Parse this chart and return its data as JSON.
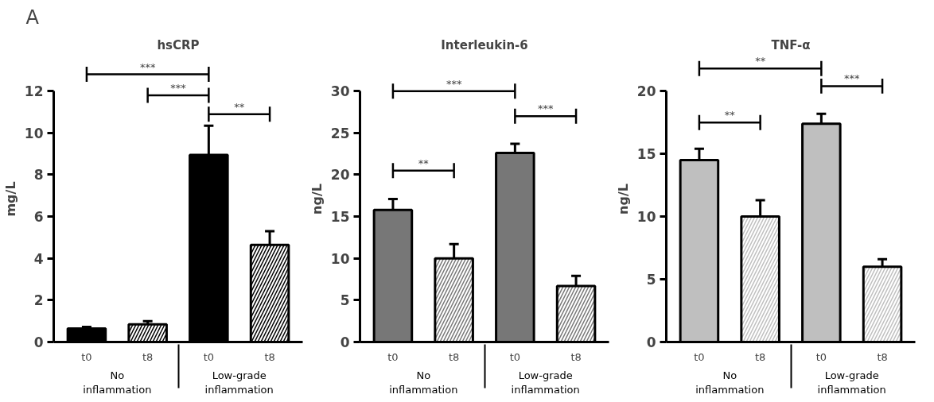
{
  "chart_data": [
    {
      "type": "bar",
      "title": "hsCRP",
      "ylabel": "mg/L",
      "categories": [
        "t0",
        "t8",
        "t0",
        "t8"
      ],
      "ylim": [
        0,
        12
      ],
      "yticks": [
        0,
        2,
        4,
        6,
        8,
        10,
        12
      ],
      "series": [
        {
          "color": "#000000",
          "values": [
            0.65,
            null,
            8.95,
            null
          ],
          "errors": [
            0.07,
            null,
            1.4,
            null
          ]
        },
        {
          "color": "#ffffff",
          "values": [
            null,
            0.85,
            null,
            4.65
          ],
          "errors": [
            null,
            0.15,
            null,
            0.65
          ]
        }
      ],
      "annotations": [
        "A",
        "No\ninflammation",
        "Low-grade\ninflammation",
        "***",
        "***",
        "**"
      ]
    },
    {
      "type": "bar",
      "title": "Interleukin-6",
      "ylabel": "ng/L",
      "categories": [
        "t0",
        "t8",
        "t0",
        "t8"
      ],
      "ylim": [
        0,
        30
      ],
      "yticks": [
        0,
        5,
        10,
        15,
        20,
        25,
        30
      ],
      "series": [
        {
          "color": "#777777",
          "values": [
            15.8,
            null,
            22.6,
            null
          ],
          "errors": [
            1.3,
            null,
            1.1,
            null
          ]
        },
        {
          "color": "#ffffff",
          "values": [
            null,
            10.0,
            null,
            6.7
          ],
          "errors": [
            null,
            1.7,
            null,
            1.2
          ]
        }
      ],
      "annotations": [
        "No\ninflammation",
        "Low-grade\ninflammation",
        "***",
        "**",
        "***"
      ]
    },
    {
      "type": "bar",
      "title": "TNF-α",
      "ylabel": "ng/L",
      "categories": [
        "t0",
        "t8",
        "t0",
        "t8"
      ],
      "ylim": [
        0,
        20
      ],
      "yticks": [
        0,
        5,
        10,
        15,
        20
      ],
      "series": [
        {
          "color": "#bfbfbf",
          "values": [
            14.5,
            null,
            17.4,
            null
          ],
          "errors": [
            0.9,
            null,
            0.8,
            null
          ]
        },
        {
          "color": "#ffffff",
          "values": [
            null,
            10.0,
            null,
            6.0
          ],
          "errors": [
            null,
            1.3,
            null,
            0.6
          ]
        }
      ],
      "annotations": [
        "No\ninflammation",
        "Low-grade\ninflammation",
        "**",
        "**",
        "***"
      ]
    }
  ]
}
